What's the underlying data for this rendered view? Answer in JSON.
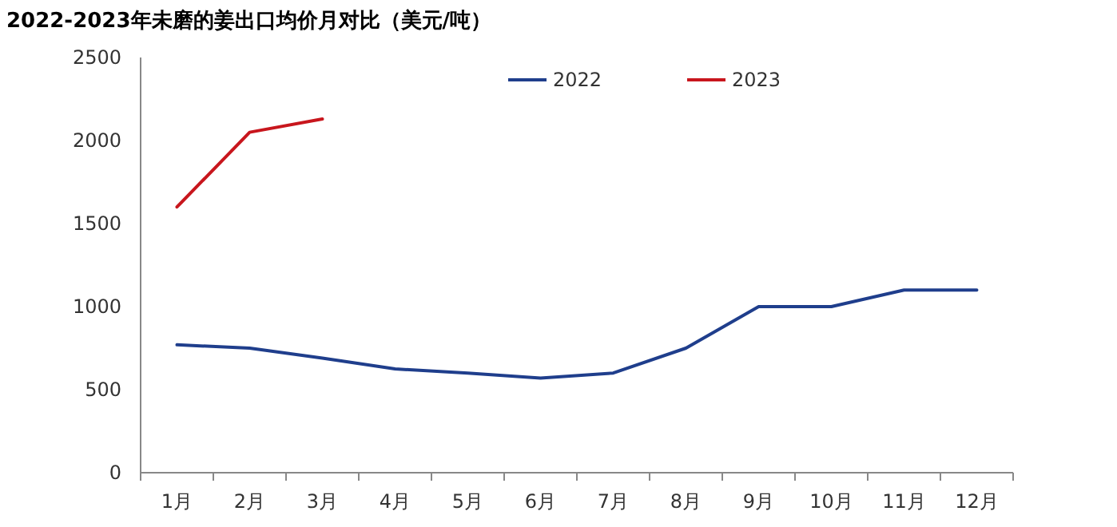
{
  "chart_data": {
    "type": "line",
    "title": "2022-2023年未磨的姜出口均价月对比（美元/吨）",
    "categories": [
      "1月",
      "2月",
      "3月",
      "4月",
      "5月",
      "6月",
      "7月",
      "8月",
      "9月",
      "10月",
      "11月",
      "12月"
    ],
    "series": [
      {
        "name": "2022",
        "color": "#1f3e8c",
        "values": [
          770,
          750,
          690,
          625,
          600,
          570,
          600,
          750,
          1000,
          1000,
          1100,
          1100
        ]
      },
      {
        "name": "2023",
        "color": "#c8161d",
        "values": [
          1600,
          2050,
          2130,
          null,
          null,
          null,
          null,
          null,
          null,
          null,
          null,
          null
        ]
      }
    ],
    "ylim": [
      0,
      2500
    ],
    "yticks": [
      0,
      500,
      1000,
      1500,
      2000,
      2500
    ],
    "grid": false,
    "legend": "top",
    "marker": "none",
    "line_style": "solid"
  }
}
